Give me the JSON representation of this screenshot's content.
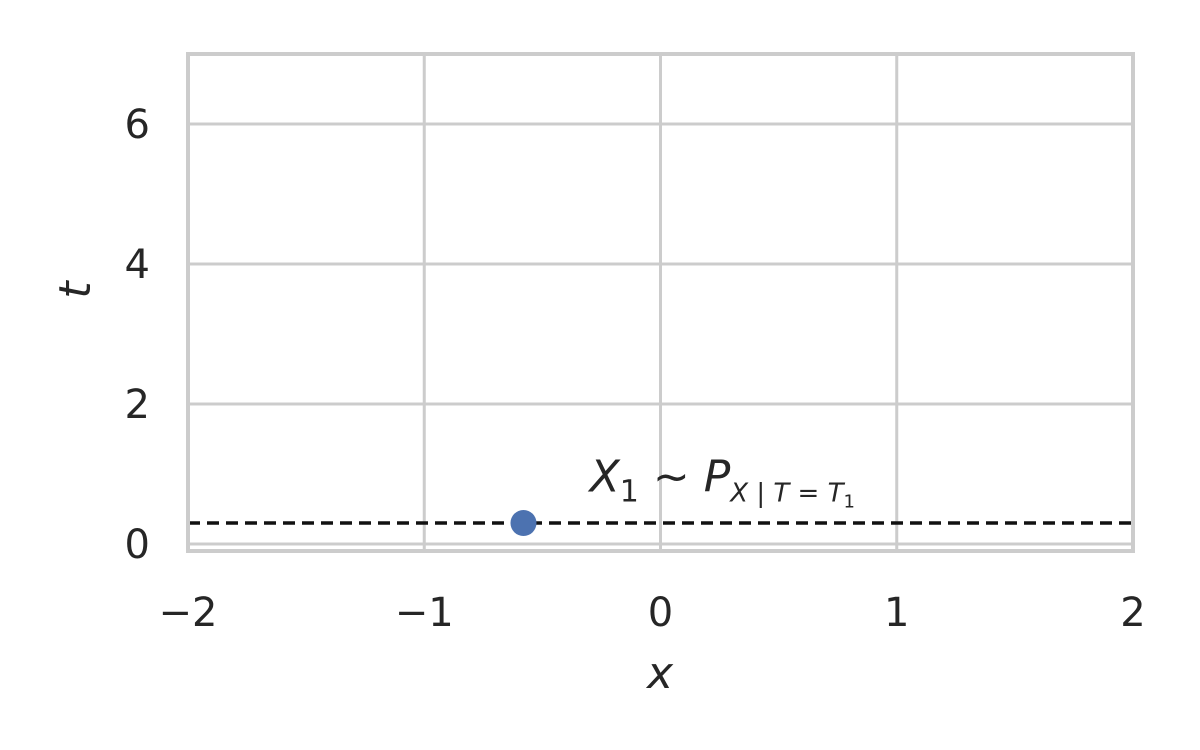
{
  "chart_data": {
    "type": "scatter",
    "title": "",
    "xlabel": "x",
    "ylabel": "t",
    "xlim": [
      -2,
      2
    ],
    "ylim": [
      -0.1,
      7
    ],
    "x_ticks": [
      -2,
      -1,
      0,
      1,
      2
    ],
    "x_tick_labels": [
      "−2",
      "−1",
      "0",
      "1",
      "2"
    ],
    "y_ticks": [
      0,
      2,
      4,
      6
    ],
    "y_tick_labels": [
      "0",
      "2",
      "4",
      "6"
    ],
    "grid": true,
    "points": [
      {
        "x": -0.58,
        "y": 0.3
      }
    ],
    "hline": {
      "y": 0.3,
      "style": "dashed",
      "color": "#111111"
    },
    "annotation": {
      "main": "X",
      "main_sub": "1",
      "op": " ~ ",
      "dist": "P",
      "dist_sub_a": "X | T = T",
      "dist_sub_b": "1",
      "x": -0.3,
      "y": 0.75
    },
    "colors": {
      "point": "#4c72b0",
      "grid": "#cccccc",
      "text": "#262626"
    }
  }
}
